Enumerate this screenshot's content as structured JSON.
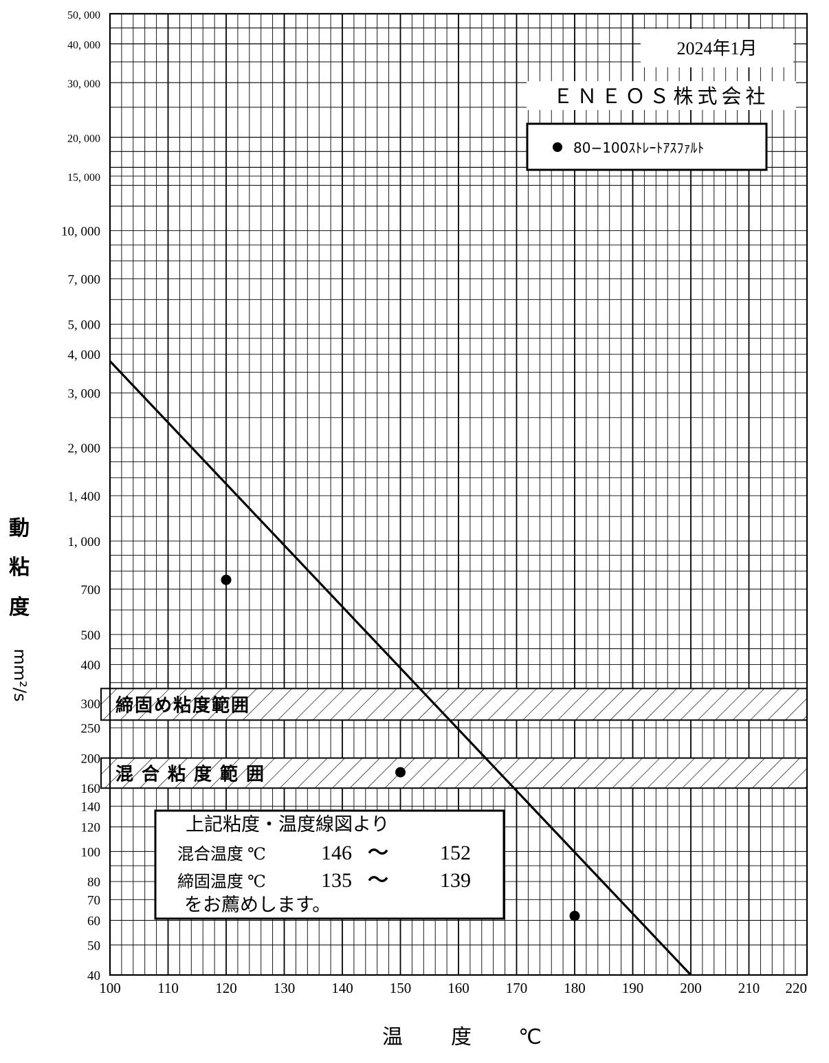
{
  "chart_data": {
    "type": "line",
    "x_scale": "linear",
    "y_scale": "log",
    "xlim": [
      100,
      220
    ],
    "ylim": [
      40,
      50000
    ],
    "x_ticks": [
      "100",
      "110",
      "120",
      "130",
      "140",
      "150",
      "160",
      "170",
      "180",
      "190",
      "200",
      "210",
      "220"
    ],
    "y_ticks": [
      {
        "value": 50000,
        "label": "50, 000"
      },
      {
        "value": 40000,
        "label": "40, 000"
      },
      {
        "value": 30000,
        "label": "30, 000"
      },
      {
        "value": 20000,
        "label": "20, 000"
      },
      {
        "value": 15000,
        "label": "15, 000"
      },
      {
        "value": 10000,
        "label": "10, 000"
      },
      {
        "value": 7000,
        "label": "7, 000"
      },
      {
        "value": 5000,
        "label": "5, 000"
      },
      {
        "value": 4000,
        "label": "4, 000"
      },
      {
        "value": 3000,
        "label": "3, 000"
      },
      {
        "value": 2000,
        "label": "2, 000"
      },
      {
        "value": 1400,
        "label": "1, 400"
      },
      {
        "value": 1000,
        "label": "1, 000"
      },
      {
        "value": 700,
        "label": "700"
      },
      {
        "value": 500,
        "label": "500"
      },
      {
        "value": 400,
        "label": "400"
      },
      {
        "value": 300,
        "label": "300"
      },
      {
        "value": 250,
        "label": "250"
      },
      {
        "value": 200,
        "label": "200"
      },
      {
        "value": 160,
        "label": "160"
      },
      {
        "value": 140,
        "label": "140"
      },
      {
        "value": 120,
        "label": "120"
      },
      {
        "value": 100,
        "label": "100"
      },
      {
        "value": 80,
        "label": "80"
      },
      {
        "value": 70,
        "label": "70"
      },
      {
        "value": 60,
        "label": "60"
      },
      {
        "value": 50,
        "label": "50"
      },
      {
        "value": 40,
        "label": "40"
      }
    ],
    "ylabel_chars": [
      "動",
      "粘",
      "度"
    ],
    "ylabel_unit": "mm²/s",
    "xlabel_chars": [
      "温",
      "度",
      "℃"
    ],
    "series": [
      {
        "name": "80−100ｽﾄﾚｰﾄｱｽﾌｧﾙﾄ",
        "points": [
          {
            "x": 120,
            "y": 750
          },
          {
            "x": 150,
            "y": 180
          },
          {
            "x": 180,
            "y": 62
          }
        ],
        "fit_line": [
          {
            "x": 100,
            "y": 3800
          },
          {
            "x": 200,
            "y": 40
          }
        ]
      }
    ],
    "bands": [
      {
        "label": "締固め粘度範囲",
        "ymin": 265,
        "ymax": 335
      },
      {
        "label": "混合粘度範囲",
        "ymin": 160,
        "ymax": 200
      }
    ],
    "grid": true
  },
  "header": {
    "date": "2024年1月",
    "company": "ＥＮＥＯＳ株式会社"
  },
  "legend": {
    "marker_color": "#000000",
    "label": "80−100ｽﾄﾚｰﾄｱｽﾌｧﾙﾄ"
  },
  "recommendation": {
    "line1": "上記粘度・温度線図より",
    "mix_label": "混合温度 ℃",
    "mix_low": "146",
    "mix_tilde": "〜",
    "mix_high": "152",
    "compact_label": "締固温度 ℃",
    "compact_low": "135",
    "compact_tilde": "〜",
    "compact_high": "139",
    "line4": "をお薦めします。"
  }
}
